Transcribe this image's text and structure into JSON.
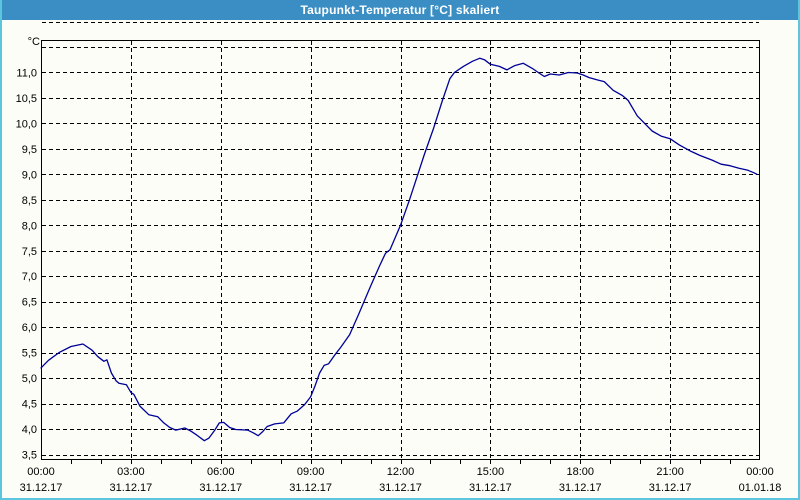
{
  "window": {
    "title": "Taupunkt-Temperatur [°C] skaliert"
  },
  "colors": {
    "titlebar_bg": "#3B8EC4",
    "titlebar_text": "#FFFFFF",
    "frame_border": "#5CC6DF",
    "background": "#FBFDF6",
    "gridline": "#000000",
    "axis_border": "#000000",
    "curve": "#000099"
  },
  "chart_data": {
    "type": "line",
    "title": "Taupunkt-Temperatur [°C] skaliert",
    "xlabel": "",
    "ylabel": "°C",
    "ylim": [
      3.5,
      11.5
    ],
    "y_gridline_step": 0.5,
    "x_range_hours": [
      0,
      24
    ],
    "x_gridline_step_hours": 3,
    "x_minor_tick_step_hours": 1,
    "grid": "dashed black on/off, horizontal every 0.5 °C, vertical every 3 h",
    "legend": "none",
    "yticks": [
      {
        "value": 11.0,
        "label": "11,0"
      },
      {
        "value": 10.5,
        "label": "10,5"
      },
      {
        "value": 10.0,
        "label": "10,0"
      },
      {
        "value": 9.5,
        "label": "9,5"
      },
      {
        "value": 9.0,
        "label": "9,0"
      },
      {
        "value": 8.5,
        "label": "8,5"
      },
      {
        "value": 8.0,
        "label": "8,0"
      },
      {
        "value": 7.5,
        "label": "7,5"
      },
      {
        "value": 7.0,
        "label": "7,0"
      },
      {
        "value": 6.5,
        "label": "6,5"
      },
      {
        "value": 6.0,
        "label": "6,0"
      },
      {
        "value": 5.5,
        "label": "5,5"
      },
      {
        "value": 5.0,
        "label": "5,0"
      },
      {
        "value": 4.5,
        "label": "4,5"
      },
      {
        "value": 4.0,
        "label": "4,0"
      },
      {
        "value": 3.5,
        "label": "3,5"
      }
    ],
    "xticks": [
      {
        "hour": 0,
        "time": "00:00",
        "date": "31.12.17"
      },
      {
        "hour": 3,
        "time": "03:00",
        "date": "31.12.17"
      },
      {
        "hour": 6,
        "time": "06:00",
        "date": "31.12.17"
      },
      {
        "hour": 9,
        "time": "09:00",
        "date": "31.12.17"
      },
      {
        "hour": 12,
        "time": "12:00",
        "date": "31.12.17"
      },
      {
        "hour": 15,
        "time": "15:00",
        "date": "31.12.17"
      },
      {
        "hour": 18,
        "time": "18:00",
        "date": "31.12.17"
      },
      {
        "hour": 21,
        "time": "21:00",
        "date": "31.12.17"
      },
      {
        "hour": 24,
        "time": "00:00",
        "date": "01.01.18"
      }
    ],
    "series": [
      {
        "name": "Taupunkt-Temperatur",
        "color": "#000099",
        "x": [
          0,
          0.25,
          0.6,
          1.0,
          1.4,
          1.7,
          1.9,
          2.1,
          2.2,
          2.35,
          2.5,
          2.6,
          2.85,
          3.0,
          3.1,
          3.3,
          3.6,
          3.9,
          4.1,
          4.3,
          4.5,
          4.8,
          5.0,
          5.2,
          5.45,
          5.6,
          5.8,
          5.95,
          6.1,
          6.3,
          6.5,
          6.9,
          7.1,
          7.25,
          7.4,
          7.55,
          7.8,
          8.1,
          8.35,
          8.55,
          8.8,
          9.0,
          9.15,
          9.3,
          9.45,
          9.6,
          9.8,
          10.0,
          10.3,
          10.6,
          11.0,
          11.3,
          11.5,
          11.65,
          12.0,
          12.3,
          12.55,
          12.8,
          13.1,
          13.4,
          13.65,
          13.8,
          14.1,
          14.4,
          14.65,
          14.8,
          15.0,
          15.3,
          15.55,
          15.8,
          16.1,
          16.4,
          16.6,
          16.8,
          17.0,
          17.3,
          17.6,
          17.9,
          18.1,
          18.3,
          18.6,
          18.8,
          19.1,
          19.4,
          19.6,
          19.9,
          20.15,
          20.4,
          20.7,
          21.0,
          21.3,
          21.7,
          22.0,
          22.4,
          22.7,
          23.0,
          23.3,
          23.6,
          23.8,
          23.9
        ],
        "y": [
          5.2,
          5.35,
          5.5,
          5.62,
          5.67,
          5.55,
          5.42,
          5.33,
          5.36,
          5.1,
          4.95,
          4.9,
          4.87,
          4.72,
          4.68,
          4.45,
          4.28,
          4.24,
          4.12,
          4.03,
          3.98,
          4.02,
          3.96,
          3.88,
          3.77,
          3.82,
          3.98,
          4.12,
          4.13,
          4.03,
          3.99,
          3.98,
          3.92,
          3.87,
          3.95,
          4.05,
          4.1,
          4.12,
          4.3,
          4.35,
          4.48,
          4.63,
          4.85,
          5.1,
          5.25,
          5.28,
          5.45,
          5.6,
          5.85,
          6.25,
          6.8,
          7.2,
          7.45,
          7.52,
          8.0,
          8.5,
          8.95,
          9.4,
          9.9,
          10.45,
          10.88,
          11.0,
          11.12,
          11.22,
          11.28,
          11.25,
          11.16,
          11.12,
          11.05,
          11.13,
          11.18,
          11.08,
          11.0,
          10.92,
          10.97,
          10.95,
          11.0,
          10.99,
          10.95,
          10.9,
          10.85,
          10.82,
          10.65,
          10.55,
          10.45,
          10.15,
          10.0,
          9.85,
          9.75,
          9.7,
          9.58,
          9.45,
          9.37,
          9.28,
          9.2,
          9.17,
          9.12,
          9.08,
          9.03,
          9.0
        ]
      }
    ]
  }
}
